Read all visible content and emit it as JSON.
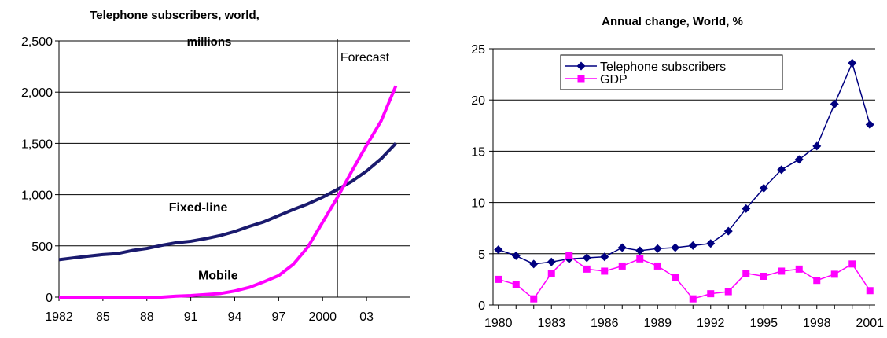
{
  "chart_data": [
    {
      "type": "line",
      "title_line1": "Telephone subscribers, world,",
      "title_line2": "millions",
      "x": [
        1982,
        1983,
        1984,
        1985,
        1986,
        1987,
        1988,
        1989,
        1990,
        1991,
        1992,
        1993,
        1994,
        1995,
        1996,
        1997,
        1998,
        1999,
        2000,
        2001,
        2002,
        2003,
        2004,
        2005
      ],
      "x_tick_labels": [
        "1982",
        "85",
        "88",
        "91",
        "94",
        "97",
        "2000",
        "03"
      ],
      "x_tick_values": [
        1982,
        1985,
        1988,
        1991,
        1994,
        1997,
        2000,
        2003
      ],
      "ylim": [
        0,
        2500
      ],
      "y_ticks": [
        0,
        500,
        1000,
        1500,
        2000,
        2500
      ],
      "y_tick_labels": [
        "0",
        "500",
        "1,000",
        "1,500",
        "2,000",
        "2,500"
      ],
      "grid": true,
      "forecast_label": "Forecast",
      "forecast_x": 2001,
      "series": [
        {
          "name": "Fixed-line",
          "color": "#1a1a6e",
          "values": [
            365,
            383,
            400,
            415,
            425,
            455,
            475,
            505,
            530,
            545,
            570,
            600,
            640,
            690,
            735,
            795,
            855,
            910,
            975,
            1050,
            1130,
            1230,
            1350,
            1500
          ]
        },
        {
          "name": "Mobile",
          "color": "#ff00ff",
          "values": [
            0,
            0,
            0,
            0,
            0,
            0,
            0,
            0,
            10,
            15,
            25,
            35,
            60,
            95,
            150,
            210,
            320,
            490,
            730,
            970,
            1230,
            1480,
            1720,
            2060
          ]
        }
      ]
    },
    {
      "type": "line",
      "title": "Annual change, World, %",
      "x": [
        1980,
        1981,
        1982,
        1983,
        1984,
        1985,
        1986,
        1987,
        1988,
        1989,
        1990,
        1991,
        1992,
        1993,
        1994,
        1995,
        1996,
        1997,
        1998,
        1999,
        2000,
        2001
      ],
      "x_tick_labels": [
        "1980",
        "1983",
        "1986",
        "1989",
        "1992",
        "1995",
        "1998",
        "2001"
      ],
      "x_tick_values": [
        1980,
        1983,
        1986,
        1989,
        1992,
        1995,
        1998,
        2001
      ],
      "ylim": [
        0,
        25
      ],
      "y_ticks": [
        0,
        5,
        10,
        15,
        20,
        25
      ],
      "y_tick_labels": [
        "0",
        "5",
        "10",
        "15",
        "20",
        "25"
      ],
      "grid": true,
      "legend_position": "top-left",
      "series": [
        {
          "name": "Telephone subscribers",
          "color": "#000080",
          "marker": "diamond",
          "values": [
            5.4,
            4.8,
            4.0,
            4.2,
            4.5,
            4.6,
            4.7,
            5.6,
            5.3,
            5.5,
            5.6,
            5.8,
            6.0,
            7.2,
            9.4,
            11.4,
            13.2,
            14.2,
            15.5,
            19.6,
            23.6,
            17.6
          ]
        },
        {
          "name": "GDP",
          "color": "#ff00ff",
          "marker": "square",
          "values": [
            2.5,
            2.0,
            0.6,
            3.1,
            4.8,
            3.5,
            3.3,
            3.8,
            4.5,
            3.8,
            2.7,
            0.6,
            1.1,
            1.3,
            3.1,
            2.8,
            3.3,
            3.5,
            2.4,
            3.0,
            4.0,
            1.4
          ]
        }
      ]
    }
  ]
}
